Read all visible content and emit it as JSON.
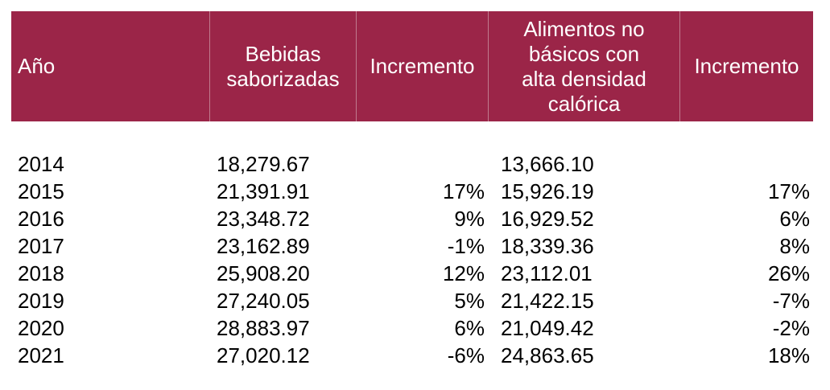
{
  "table": {
    "headers": [
      "Año",
      "Bebidas\nsaborizadas",
      "Incremento",
      "Alimentos no\nbásicos con\nalta densidad\ncalórica",
      "Incremento"
    ],
    "rows": [
      {
        "year": "2014",
        "bebidas": "18,279.67",
        "inc1": "",
        "alimentos": "13,666.10",
        "inc2": ""
      },
      {
        "year": "2015",
        "bebidas": "21,391.91",
        "inc1": "17%",
        "alimentos": "15,926.19",
        "inc2": "17%"
      },
      {
        "year": "2016",
        "bebidas": "23,348.72",
        "inc1": "9%",
        "alimentos": "16,929.52",
        "inc2": "6%"
      },
      {
        "year": "2017",
        "bebidas": "23,162.89",
        "inc1": "-1%",
        "alimentos": "18,339.36",
        "inc2": "8%"
      },
      {
        "year": "2018",
        "bebidas": "25,908.20",
        "inc1": "12%",
        "alimentos": "23,112.01",
        "inc2": "26%"
      },
      {
        "year": "2019",
        "bebidas": "27,240.05",
        "inc1": "5%",
        "alimentos": "21,422.15",
        "inc2": "-7%"
      },
      {
        "year": "2020",
        "bebidas": "28,883.97",
        "inc1": "6%",
        "alimentos": "21,049.42",
        "inc2": "-2%"
      },
      {
        "year": "2021",
        "bebidas": "27,020.12",
        "inc1": "-6%",
        "alimentos": "24,863.65",
        "inc2": "18%"
      }
    ]
  },
  "colors": {
    "header_background": "#9b2548",
    "header_text": "#ffffff",
    "body_text": "#000000"
  }
}
